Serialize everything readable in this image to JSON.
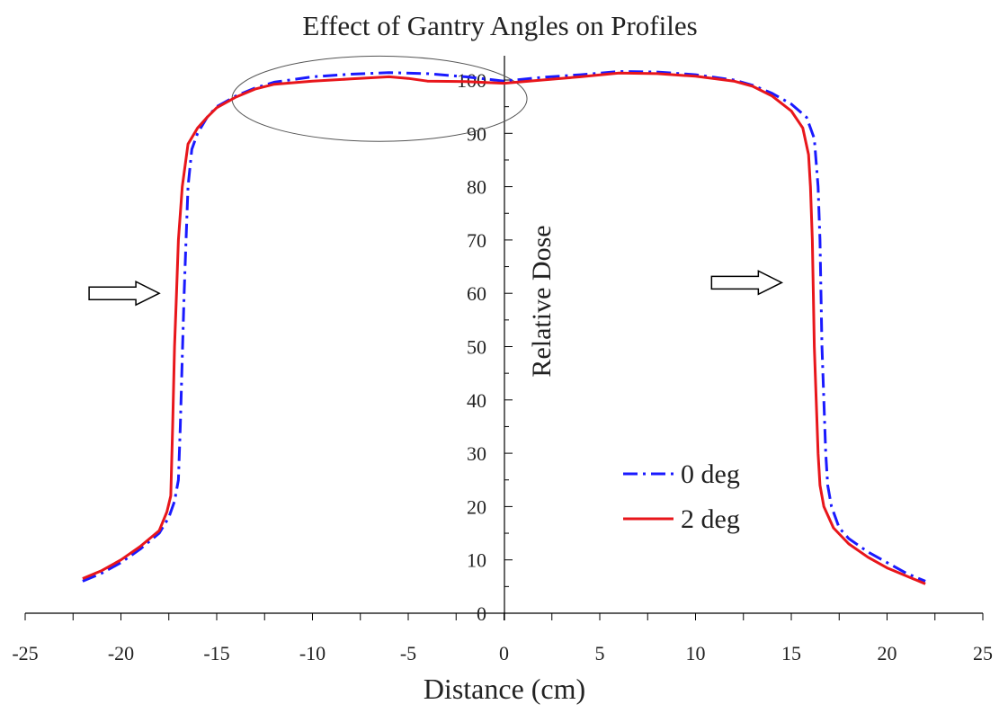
{
  "chart_data": {
    "type": "line",
    "title": "Effect of Gantry Angles on Profiles",
    "xlabel": "Distance (cm)",
    "ylabel": "Relative Dose",
    "xlim": [
      -25,
      25
    ],
    "ylim": [
      0,
      100
    ],
    "x_ticks": [
      "-25",
      "-20",
      "-15",
      "-10",
      "-5",
      "0",
      "5",
      "10",
      "15",
      "20",
      "25"
    ],
    "y_ticks": [
      "0",
      "10",
      "20",
      "30",
      "40",
      "50",
      "60",
      "70",
      "80",
      "90",
      "100"
    ],
    "grid": false,
    "legend_position": "lower-right",
    "series": [
      {
        "name": "0 deg",
        "color": "#1a1aff",
        "style": "dash-dot",
        "points": [
          [
            -22,
            6
          ],
          [
            -21,
            7.5
          ],
          [
            -20,
            9.5
          ],
          [
            -19,
            12
          ],
          [
            -18,
            15
          ],
          [
            -17.5,
            18
          ],
          [
            -17.2,
            21
          ],
          [
            -17,
            25
          ],
          [
            -16.9,
            35
          ],
          [
            -16.8,
            48
          ],
          [
            -16.7,
            60
          ],
          [
            -16.6,
            70
          ],
          [
            -16.5,
            80
          ],
          [
            -16.3,
            87
          ],
          [
            -16,
            90
          ],
          [
            -15.5,
            93
          ],
          [
            -15,
            95
          ],
          [
            -14,
            97
          ],
          [
            -13,
            98.5
          ],
          [
            -12,
            99.6
          ],
          [
            -10,
            100.6
          ],
          [
            -8,
            101.1
          ],
          [
            -6,
            101.4
          ],
          [
            -4,
            101.2
          ],
          [
            -2,
            100.6
          ],
          [
            0,
            99.8
          ],
          [
            2,
            100.5
          ],
          [
            4,
            101
          ],
          [
            6,
            101.6
          ],
          [
            8,
            101.5
          ],
          [
            10,
            101
          ],
          [
            12,
            100
          ],
          [
            13,
            99
          ],
          [
            14,
            97.5
          ],
          [
            15,
            95.5
          ],
          [
            15.8,
            93
          ],
          [
            16.2,
            89
          ],
          [
            16.4,
            80
          ],
          [
            16.5,
            70
          ],
          [
            16.55,
            60
          ],
          [
            16.6,
            50
          ],
          [
            16.7,
            40
          ],
          [
            16.8,
            30
          ],
          [
            16.9,
            24
          ],
          [
            17.1,
            20
          ],
          [
            17.5,
            16
          ],
          [
            18,
            14
          ],
          [
            19,
            11.5
          ],
          [
            20,
            9.5
          ],
          [
            21,
            7.5
          ],
          [
            22,
            6
          ]
        ]
      },
      {
        "name": "2 deg",
        "color": "#e8161b",
        "style": "solid",
        "points": [
          [
            -22,
            6.5
          ],
          [
            -21,
            8
          ],
          [
            -20,
            10
          ],
          [
            -19,
            12.5
          ],
          [
            -18,
            15.5
          ],
          [
            -17.6,
            19
          ],
          [
            -17.4,
            22
          ],
          [
            -17.3,
            35
          ],
          [
            -17.2,
            50
          ],
          [
            -17.1,
            60
          ],
          [
            -17,
            70
          ],
          [
            -16.8,
            80
          ],
          [
            -16.5,
            88
          ],
          [
            -16,
            91
          ],
          [
            -15.5,
            93
          ],
          [
            -15,
            94.8
          ],
          [
            -14,
            96.8
          ],
          [
            -13,
            98.3
          ],
          [
            -12,
            99.2
          ],
          [
            -10,
            99.8
          ],
          [
            -8,
            100.2
          ],
          [
            -6,
            100.6
          ],
          [
            -5,
            100.3
          ],
          [
            -4,
            99.8
          ],
          [
            -2,
            99.7
          ],
          [
            0,
            99.4
          ],
          [
            2,
            100
          ],
          [
            4,
            100.6
          ],
          [
            6,
            101.3
          ],
          [
            8,
            101.2
          ],
          [
            10,
            100.7
          ],
          [
            12,
            99.8
          ],
          [
            13,
            98.8
          ],
          [
            14,
            97
          ],
          [
            15,
            94.2
          ],
          [
            15.6,
            91
          ],
          [
            15.9,
            86
          ],
          [
            16,
            80
          ],
          [
            16.1,
            70
          ],
          [
            16.15,
            60
          ],
          [
            16.2,
            50
          ],
          [
            16.3,
            40
          ],
          [
            16.4,
            30
          ],
          [
            16.5,
            24
          ],
          [
            16.7,
            20
          ],
          [
            17.2,
            16
          ],
          [
            18,
            13
          ],
          [
            19,
            10.5
          ],
          [
            20,
            8.5
          ],
          [
            21,
            7
          ],
          [
            22,
            5.5
          ]
        ]
      }
    ],
    "annotations": [
      {
        "type": "ellipse",
        "center": [
          -6.5,
          96.5
        ],
        "rx": 7.7,
        "ry": 8
      },
      {
        "type": "arrow",
        "direction": "right",
        "near": [
          -18,
          60
        ]
      },
      {
        "type": "arrow",
        "direction": "right",
        "near": [
          14.5,
          62
        ]
      }
    ]
  }
}
